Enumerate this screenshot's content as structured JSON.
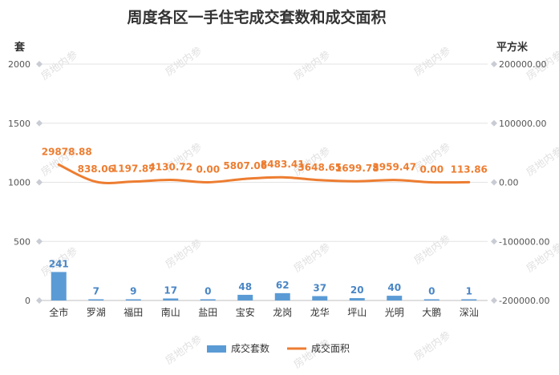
{
  "chart_data": {
    "type": "bar",
    "title": "周度各区一手住宅成交套数和成交面积",
    "left_unit": "套",
    "right_unit": "平方米",
    "categories": [
      "全市",
      "罗湖",
      "福田",
      "南山",
      "盐田",
      "宝安",
      "龙岗",
      "龙华",
      "坪山",
      "光明",
      "大鹏",
      "深汕"
    ],
    "series": [
      {
        "name": "成交套数",
        "type": "bar",
        "axis": "left",
        "color": "#5b9bd5",
        "values": [
          241,
          7,
          9,
          17,
          0,
          48,
          62,
          37,
          20,
          40,
          0,
          1
        ]
      },
      {
        "name": "成交面积",
        "type": "line",
        "axis": "right",
        "color": "#ed7d31",
        "values": [
          29878.88,
          838.06,
          1197.87,
          4130.72,
          0.0,
          5807.06,
          8483.41,
          3648.65,
          1699.78,
          3959.47,
          0.0,
          113.86
        ],
        "labels": [
          "29878.88",
          "838.06",
          "1197.87",
          "4130.72",
          "0.00",
          "5807.06",
          "8483.41",
          "3648.65",
          "1699.78",
          "3959.47",
          "0.00",
          "113.86"
        ]
      }
    ],
    "left_axis": {
      "min": 0,
      "max": 2000,
      "ticks": [
        0,
        500,
        1000,
        1500,
        2000
      ],
      "tick_labels": [
        "0",
        "500",
        "1000",
        "1500",
        "2000"
      ]
    },
    "right_axis": {
      "min": -200000,
      "max": 200000,
      "ticks": [
        -200000,
        -100000,
        0,
        100000,
        200000
      ],
      "tick_labels": [
        "-200000.00",
        "-100000.00",
        "0.00",
        "100000.00",
        "200000.00"
      ]
    },
    "grid": true,
    "legend_position": "bottom"
  },
  "watermark": "房地内参"
}
